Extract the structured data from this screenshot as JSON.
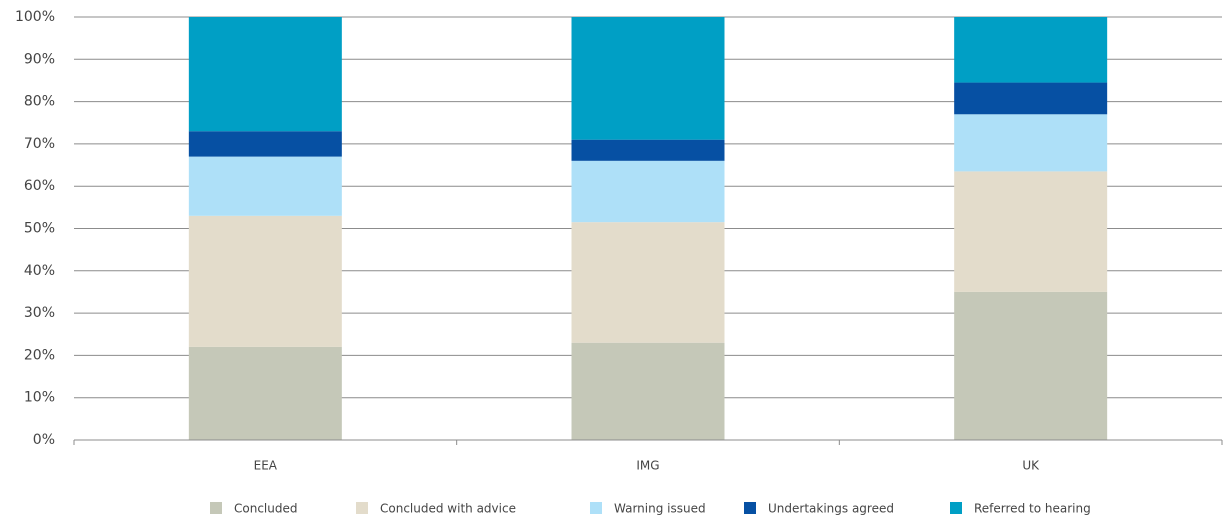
{
  "chart_data": {
    "type": "stacked-bar",
    "categories": [
      "EEA",
      "IMG",
      "UK"
    ],
    "series": [
      {
        "name": "Concluded",
        "color": "#c5c8b8",
        "values": [
          22,
          23,
          35
        ]
      },
      {
        "name": "Concluded with advice",
        "color": "#e3dccb",
        "values": [
          31,
          28.5,
          28.5
        ]
      },
      {
        "name": "Warning issued",
        "color": "#aee0f8",
        "values": [
          14,
          14.5,
          13.5
        ]
      },
      {
        "name": "Undertakings agreed",
        "color": "#0650a3",
        "values": [
          6,
          5,
          7.5
        ]
      },
      {
        "name": "Referred to hearing",
        "color": "#009fc5",
        "values": [
          27,
          29,
          15.5
        ]
      }
    ],
    "ylim": [
      0,
      100
    ],
    "yticks": [
      {
        "value": 0,
        "label": "0%"
      },
      {
        "value": 10,
        "label": "10%"
      },
      {
        "value": 20,
        "label": "20%"
      },
      {
        "value": 30,
        "label": "30%"
      },
      {
        "value": 40,
        "label": "40%"
      },
      {
        "value": 50,
        "label": "50%"
      },
      {
        "value": 60,
        "label": "60%"
      },
      {
        "value": 70,
        "label": "70%"
      },
      {
        "value": 80,
        "label": "80%"
      },
      {
        "value": 90,
        "label": "90%"
      },
      {
        "value": 100,
        "label": "100%"
      }
    ],
    "grid": true
  }
}
